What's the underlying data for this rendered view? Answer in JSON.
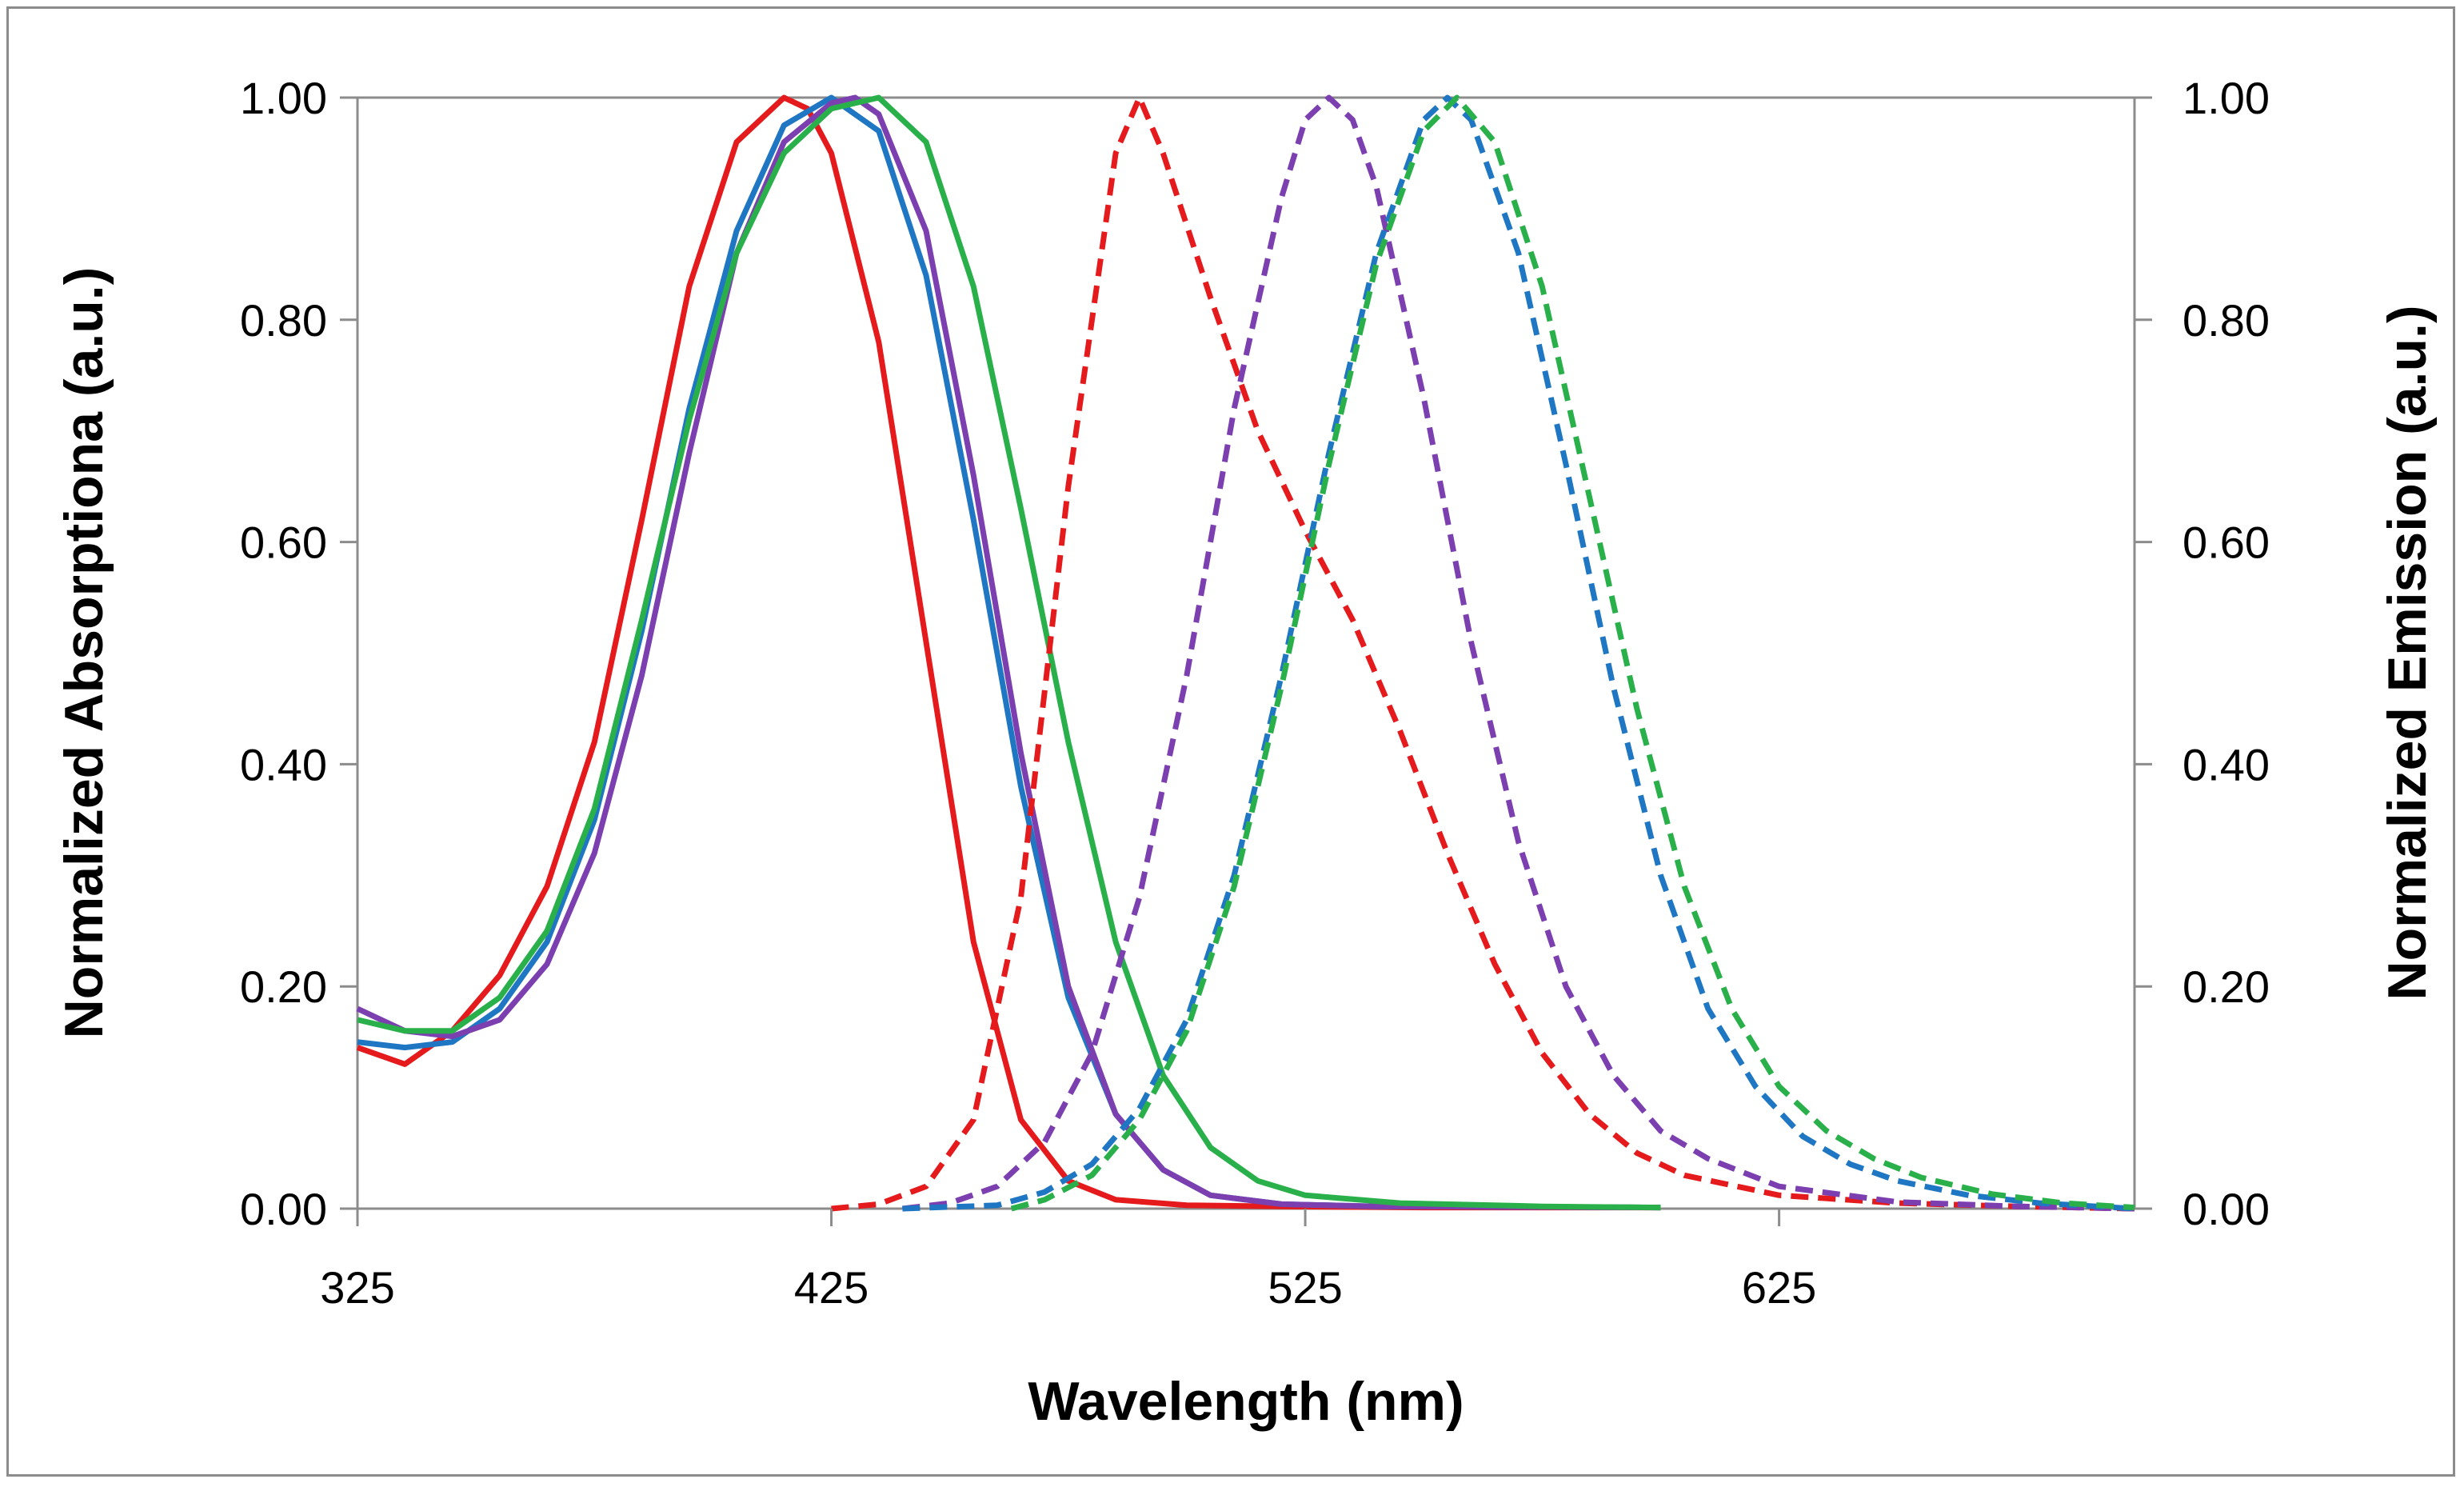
{
  "chart_data": {
    "type": "line",
    "title": "",
    "xlabel": "Wavelength (nm)",
    "ylabel": "Normalized Absorptiona (a.u.)",
    "y2label": "Normalized Emission (a.u.)",
    "xlim": [
      325,
      700
    ],
    "ylim": [
      0,
      1.0
    ],
    "y2lim": [
      0,
      1.0
    ],
    "xticks": [
      "325",
      "425",
      "525",
      "625"
    ],
    "xtick_values": [
      325,
      425,
      525,
      625
    ],
    "yticks": [
      "0.00",
      "0.20",
      "0.40",
      "0.60",
      "0.80",
      "1.00"
    ],
    "ytick_values": [
      0,
      0.2,
      0.4,
      0.6,
      0.8,
      1.0
    ],
    "y2ticks": [
      "0.00",
      "0.20",
      "0.40",
      "0.60",
      "0.80",
      "1.00"
    ],
    "grid": false,
    "series": [
      {
        "name": "Absorption (red)",
        "color": "#e41a1c",
        "style": "solid",
        "axis": "left",
        "x": [
          325,
          335,
          345,
          355,
          365,
          375,
          385,
          395,
          405,
          415,
          420,
          425,
          435,
          445,
          455,
          465,
          475,
          485,
          500,
          520,
          550,
          600
        ],
        "y": [
          0.145,
          0.13,
          0.16,
          0.21,
          0.29,
          0.42,
          0.62,
          0.83,
          0.96,
          1.0,
          0.99,
          0.95,
          0.78,
          0.51,
          0.24,
          0.08,
          0.025,
          0.008,
          0.003,
          0.002,
          0.001,
          0.001
        ]
      },
      {
        "name": "Absorption (blue)",
        "color": "#1f77c4",
        "style": "solid",
        "axis": "left",
        "x": [
          325,
          335,
          345,
          355,
          365,
          375,
          385,
          395,
          405,
          415,
          425,
          435,
          445,
          455,
          465,
          475,
          485,
          495,
          505,
          520,
          540,
          600
        ],
        "y": [
          0.15,
          0.145,
          0.15,
          0.18,
          0.24,
          0.35,
          0.52,
          0.72,
          0.88,
          0.975,
          1.0,
          0.97,
          0.84,
          0.62,
          0.38,
          0.19,
          0.085,
          0.035,
          0.012,
          0.004,
          0.002,
          0.001
        ]
      },
      {
        "name": "Absorption (purple)",
        "color": "#7b3fb0",
        "style": "solid",
        "axis": "left",
        "x": [
          325,
          335,
          345,
          355,
          365,
          375,
          385,
          395,
          405,
          415,
          425,
          430,
          435,
          445,
          455,
          465,
          475,
          485,
          495,
          505,
          520,
          540,
          600
        ],
        "y": [
          0.18,
          0.16,
          0.155,
          0.17,
          0.22,
          0.32,
          0.48,
          0.68,
          0.86,
          0.96,
          0.995,
          1.0,
          0.985,
          0.88,
          0.66,
          0.41,
          0.2,
          0.085,
          0.035,
          0.012,
          0.004,
          0.002,
          0.001
        ]
      },
      {
        "name": "Absorption (green)",
        "color": "#2ab04a",
        "style": "solid",
        "axis": "left",
        "x": [
          325,
          335,
          345,
          355,
          365,
          375,
          385,
          395,
          405,
          415,
          425,
          435,
          445,
          455,
          465,
          475,
          485,
          495,
          505,
          515,
          525,
          545,
          575,
          600
        ],
        "y": [
          0.17,
          0.16,
          0.16,
          0.19,
          0.25,
          0.36,
          0.53,
          0.71,
          0.86,
          0.95,
          0.99,
          1.0,
          0.96,
          0.83,
          0.63,
          0.42,
          0.24,
          0.12,
          0.055,
          0.025,
          0.012,
          0.005,
          0.002,
          0.001
        ]
      },
      {
        "name": "Emission (red)",
        "color": "#e41a1c",
        "style": "dashed",
        "axis": "right",
        "x": [
          425,
          435,
          445,
          455,
          465,
          475,
          485,
          490,
          495,
          505,
          515,
          525,
          535,
          545,
          555,
          565,
          575,
          585,
          595,
          605,
          625,
          650,
          675,
          700
        ],
        "y": [
          0.0,
          0.004,
          0.02,
          0.08,
          0.28,
          0.65,
          0.95,
          1.0,
          0.95,
          0.82,
          0.7,
          0.61,
          0.53,
          0.43,
          0.32,
          0.22,
          0.14,
          0.085,
          0.05,
          0.03,
          0.012,
          0.005,
          0.002,
          0.0
        ]
      },
      {
        "name": "Emission (purple)",
        "color": "#7b3fb0",
        "style": "dashed",
        "axis": "right",
        "x": [
          440,
          450,
          460,
          470,
          480,
          490,
          500,
          510,
          520,
          525,
          530,
          535,
          540,
          550,
          560,
          570,
          580,
          590,
          600,
          610,
          625,
          650,
          675,
          700
        ],
        "y": [
          0.0,
          0.005,
          0.02,
          0.06,
          0.14,
          0.28,
          0.48,
          0.72,
          0.91,
          0.98,
          1.0,
          0.98,
          0.92,
          0.73,
          0.51,
          0.33,
          0.2,
          0.12,
          0.07,
          0.045,
          0.02,
          0.006,
          0.002,
          0.0
        ]
      },
      {
        "name": "Emission (blue)",
        "color": "#1f77c4",
        "style": "dashed",
        "axis": "right",
        "x": [
          440,
          460,
          470,
          480,
          490,
          500,
          510,
          520,
          530,
          540,
          550,
          555,
          560,
          570,
          580,
          590,
          600,
          610,
          620,
          630,
          640,
          650,
          665,
          680,
          700
        ],
        "y": [
          0.0,
          0.003,
          0.015,
          0.04,
          0.09,
          0.17,
          0.3,
          0.48,
          0.68,
          0.86,
          0.98,
          1.0,
          0.98,
          0.86,
          0.67,
          0.47,
          0.3,
          0.18,
          0.11,
          0.065,
          0.04,
          0.025,
          0.012,
          0.005,
          0.0
        ]
      },
      {
        "name": "Emission (green)",
        "color": "#2ab04a",
        "style": "dashed",
        "axis": "right",
        "x": [
          463,
          470,
          480,
          490,
          500,
          510,
          520,
          530,
          540,
          550,
          557,
          565,
          575,
          585,
          595,
          605,
          615,
          625,
          635,
          645,
          655,
          670,
          685,
          700
        ],
        "y": [
          0.0,
          0.008,
          0.03,
          0.08,
          0.16,
          0.29,
          0.47,
          0.67,
          0.85,
          0.97,
          1.0,
          0.96,
          0.83,
          0.64,
          0.45,
          0.29,
          0.18,
          0.11,
          0.07,
          0.045,
          0.028,
          0.013,
          0.005,
          0.001
        ]
      }
    ]
  }
}
